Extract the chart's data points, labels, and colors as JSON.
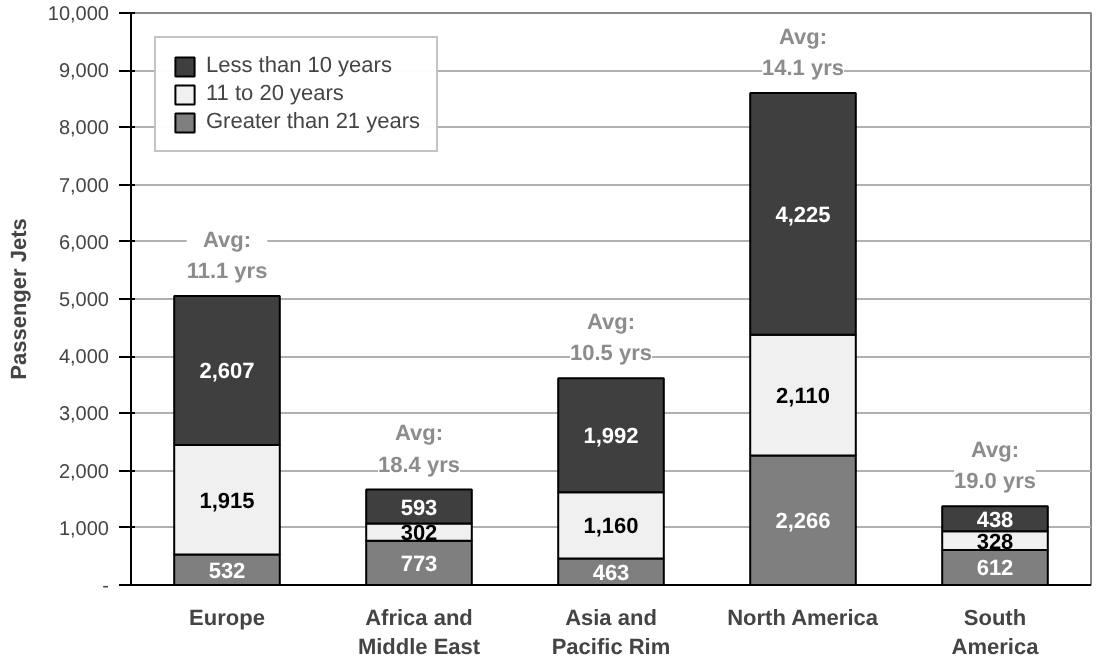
{
  "chart_data": {
    "type": "bar",
    "stacked": true,
    "ylabel": "Passenger Jets",
    "categories": [
      "Europe",
      "Africa and\nMiddle East",
      "Asia and\nPacific Rim",
      "North America",
      "South\nAmerica"
    ],
    "series": [
      {
        "name": "Greater than 21 years",
        "color": "#7f7f7f",
        "values": [
          532,
          773,
          463,
          2266,
          612
        ]
      },
      {
        "name": "11 to 20 years",
        "color": "#f0f0f0",
        "values": [
          1915,
          302,
          1160,
          2110,
          328
        ]
      },
      {
        "name": "Less than 10 years",
        "color": "#3f3f3f",
        "values": [
          2607,
          593,
          1992,
          4225,
          438
        ]
      }
    ],
    "ylim": [
      0,
      10000
    ],
    "yticks": [
      {
        "value": 0,
        "label": "-"
      },
      {
        "value": 1000,
        "label": "1,000"
      },
      {
        "value": 2000,
        "label": "2,000"
      },
      {
        "value": 3000,
        "label": "3,000"
      },
      {
        "value": 4000,
        "label": "4,000"
      },
      {
        "value": 5000,
        "label": "5,000"
      },
      {
        "value": 6000,
        "label": "6,000"
      },
      {
        "value": 7000,
        "label": "7,000"
      },
      {
        "value": 8000,
        "label": "8,000"
      },
      {
        "value": 9000,
        "label": "9,000"
      },
      {
        "value": 10000,
        "label": "10,000"
      }
    ],
    "value_labels": [
      [
        "532",
        "773",
        "463",
        "2,266",
        "612"
      ],
      [
        "1,915",
        "302",
        "1,160",
        "2,110",
        "328"
      ],
      [
        "2,607",
        "593",
        "1,992",
        "4,225",
        "438"
      ]
    ],
    "annotations": [
      {
        "text": "Avg:\n11.1 yrs",
        "x": "Europe",
        "y": 5054
      },
      {
        "text": "Avg:\n18.4 yrs",
        "x": "Africa and\nMiddle East",
        "y": 1668
      },
      {
        "text": "Avg:\n10.5 yrs",
        "x": "Asia and\nPacific Rim",
        "y": 3615
      },
      {
        "text": "Avg:\n14.1 yrs",
        "x": "North America",
        "y": 8601
      },
      {
        "text": "Avg:\n19.0 yrs",
        "x": "South\nAmerica",
        "y": 1378
      }
    ],
    "grid": "y",
    "legend": "top left"
  }
}
